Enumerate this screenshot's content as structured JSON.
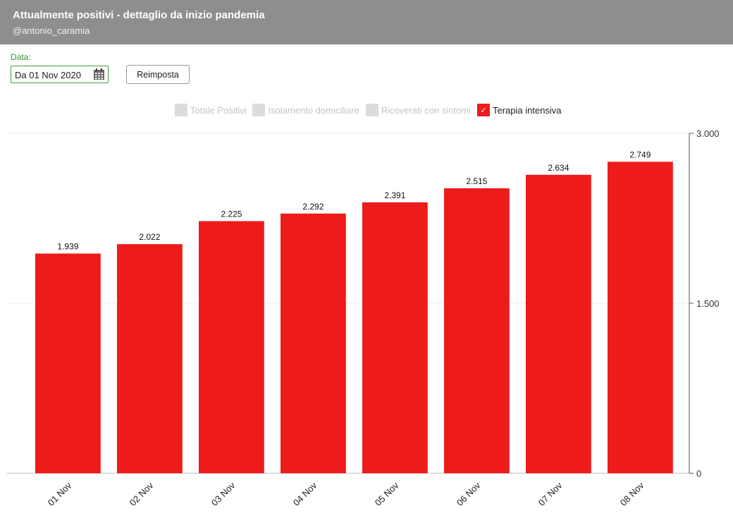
{
  "header": {
    "title": "Attualmente positivi - dettaglio da inizio pandemia",
    "subtitle": "@antonio_caramia"
  },
  "controls": {
    "date_label": "Data:",
    "date_value": "Da 01 Nov 2020",
    "reset_label": "Reimposta"
  },
  "legend": [
    {
      "label": "Totale Positivi",
      "active": false
    },
    {
      "label": "Isolamento domiciliare",
      "active": false
    },
    {
      "label": "Ricoverati con sintomi",
      "active": false
    },
    {
      "label": "Terapia intensiva",
      "active": true
    }
  ],
  "colors": {
    "bar": "#ee1b1b",
    "header": "#8e8e8e",
    "accent": "#3aa03a"
  },
  "chart_data": {
    "type": "bar",
    "categories": [
      "01 Nov",
      "02 Nov",
      "03 Nov",
      "04 Nov",
      "05 Nov",
      "06 Nov",
      "07 Nov",
      "08 Nov"
    ],
    "series": [
      {
        "name": "Terapia intensiva",
        "values": [
          1939,
          2022,
          2225,
          2292,
          2391,
          2515,
          2634,
          2749
        ],
        "labels": [
          "1.939",
          "2.022",
          "2.225",
          "2.292",
          "2.391",
          "2.515",
          "2.634",
          "2.749"
        ]
      }
    ],
    "ylim": [
      0,
      3000
    ],
    "yticks": [
      0,
      1500,
      3000
    ],
    "ytick_labels": [
      "0",
      "1.500",
      "3.000"
    ],
    "yaxis_position": "right",
    "grid": true,
    "legend_position": "top"
  }
}
